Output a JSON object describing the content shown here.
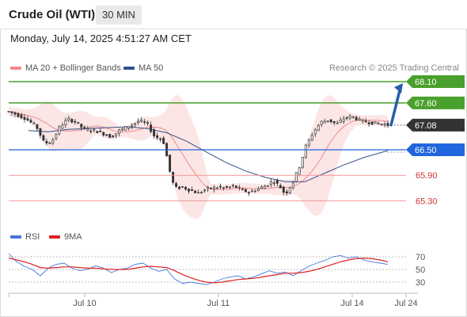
{
  "header": {
    "title": "Crude Oil (WTI)",
    "timeframe": "30 MIN",
    "datetime": "Monday, July 14, 2025 4:51:27 AM CET"
  },
  "legend": {
    "bollinger": "MA 20 + Bollinger Bands",
    "ma50": "MA 50",
    "research": "Research © 2025 Trading Central"
  },
  "rsi_legend": {
    "rsi": "RSI",
    "ma9": "9MA"
  },
  "colors": {
    "up_level": "#4aa02c",
    "current": "#333333",
    "pivot": "#2266dd",
    "down_level": "#cc3333",
    "ma50": "#33508a",
    "bollinger": "#f08a8a",
    "rsi": "#4477dd",
    "rsi_ma": "#dd2222",
    "arrow": "#2a5ea8"
  },
  "chart_data": [
    {
      "type": "candlestick",
      "title": "Crude Oil (WTI)",
      "timeframe": "30 MIN",
      "x_ticks": [
        "Jul 10",
        "Jul 11",
        "Jul 14",
        "Jul 24"
      ],
      "ylim": [
        65.0,
        68.25
      ],
      "levels": [
        {
          "value": "68.10",
          "kind": "resistance"
        },
        {
          "value": "67.60",
          "kind": "resistance"
        },
        {
          "value": "67.08",
          "kind": "current"
        },
        {
          "value": "66.50",
          "kind": "pivot"
        },
        {
          "value": "65.90",
          "kind": "support"
        },
        {
          "value": "65.30",
          "kind": "support"
        }
      ],
      "price_path": [
        [
          0,
          67.4
        ],
        [
          0.04,
          67.25
        ],
        [
          0.07,
          67.05
        ],
        [
          0.09,
          66.65
        ],
        [
          0.11,
          66.7
        ],
        [
          0.13,
          67.05
        ],
        [
          0.15,
          67.22
        ],
        [
          0.17,
          67.15
        ],
        [
          0.19,
          66.98
        ],
        [
          0.22,
          66.95
        ],
        [
          0.24,
          66.88
        ],
        [
          0.26,
          66.8
        ],
        [
          0.28,
          66.95
        ],
        [
          0.31,
          67.08
        ],
        [
          0.33,
          67.18
        ],
        [
          0.35,
          67.12
        ],
        [
          0.37,
          66.8
        ],
        [
          0.39,
          66.75
        ],
        [
          0.4,
          66.35
        ],
        [
          0.41,
          65.9
        ],
        [
          0.42,
          65.6
        ],
        [
          0.44,
          65.62
        ],
        [
          0.46,
          65.55
        ],
        [
          0.48,
          65.48
        ],
        [
          0.5,
          65.58
        ],
        [
          0.53,
          65.62
        ],
        [
          0.55,
          65.6
        ],
        [
          0.57,
          65.65
        ],
        [
          0.59,
          65.55
        ],
        [
          0.61,
          65.5
        ],
        [
          0.63,
          65.58
        ],
        [
          0.65,
          65.65
        ],
        [
          0.67,
          65.78
        ],
        [
          0.69,
          65.6
        ],
        [
          0.7,
          65.45
        ],
        [
          0.72,
          65.75
        ],
        [
          0.74,
          66.2
        ],
        [
          0.75,
          66.55
        ],
        [
          0.77,
          66.9
        ],
        [
          0.79,
          67.15
        ],
        [
          0.81,
          67.2
        ],
        [
          0.83,
          67.1
        ],
        [
          0.85,
          67.25
        ],
        [
          0.87,
          67.28
        ],
        [
          0.89,
          67.18
        ],
        [
          0.91,
          67.15
        ],
        [
          0.93,
          67.12
        ],
        [
          0.95,
          67.1
        ],
        [
          0.96,
          67.08
        ]
      ],
      "ma50_path": [
        [
          0.05,
          66.95
        ],
        [
          0.1,
          66.92
        ],
        [
          0.15,
          66.98
        ],
        [
          0.2,
          67.0
        ],
        [
          0.25,
          67.02
        ],
        [
          0.3,
          67.04
        ],
        [
          0.35,
          67.0
        ],
        [
          0.4,
          66.9
        ],
        [
          0.45,
          66.7
        ],
        [
          0.5,
          66.45
        ],
        [
          0.55,
          66.2
        ],
        [
          0.6,
          66.0
        ],
        [
          0.65,
          65.85
        ],
        [
          0.7,
          65.75
        ],
        [
          0.75,
          65.75
        ],
        [
          0.8,
          65.95
        ],
        [
          0.85,
          66.15
        ],
        [
          0.9,
          66.32
        ],
        [
          0.96,
          66.48
        ]
      ]
    },
    {
      "type": "line",
      "title": "RSI",
      "yticks": [
        "70",
        "50",
        "30"
      ],
      "ylim": [
        20,
        85
      ],
      "series": [
        {
          "name": "RSI",
          "values": [
            75,
            62,
            55,
            50,
            40,
            52,
            58,
            60,
            52,
            48,
            50,
            56,
            52,
            45,
            50,
            52,
            58,
            60,
            52,
            47,
            50,
            35,
            28,
            30,
            28,
            26,
            30,
            35,
            38,
            40,
            35,
            38,
            43,
            48,
            44,
            46,
            40,
            48,
            55,
            60,
            64,
            70,
            72,
            68,
            70,
            65,
            62,
            60,
            58
          ]
        },
        {
          "name": "9MA",
          "values": [
            68,
            65,
            62,
            58,
            53,
            52,
            53,
            54,
            54,
            53,
            52,
            52,
            51,
            50,
            50,
            50,
            52,
            54,
            55,
            54,
            53,
            48,
            42,
            37,
            33,
            30,
            29,
            30,
            32,
            34,
            35,
            36,
            38,
            40,
            42,
            44,
            44,
            45,
            47,
            50,
            54,
            58,
            62,
            65,
            67,
            68,
            67,
            65,
            62
          ]
        }
      ]
    }
  ]
}
